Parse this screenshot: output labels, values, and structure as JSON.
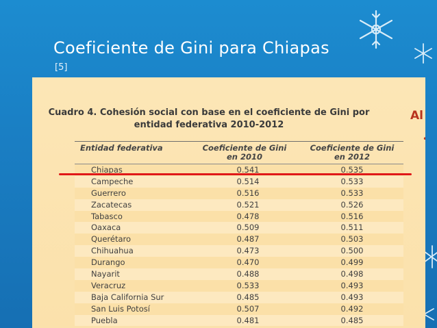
{
  "slide": {
    "title": "Coeficiente de Gini para Chiapas",
    "reference": "[5]"
  },
  "document": {
    "caption_line1": "Cuadro 4. Cohesión social con base en el coeficiente de Gini por",
    "caption_line2": "entidad federativa 2010-2012",
    "side_text": "Al",
    "columns": {
      "entity": "Entidad federativa",
      "gini2010_l1": "Coeficiente de Gini",
      "gini2010_l2": "en 2010",
      "gini2012_l1": "Coeficiente de Gini",
      "gini2012_l2": "en 2012"
    },
    "rows": [
      {
        "entity": "Chiapas",
        "g2010": "0.541",
        "g2012": "0.535"
      },
      {
        "entity": "Campeche",
        "g2010": "0.514",
        "g2012": "0.533"
      },
      {
        "entity": "Guerrero",
        "g2010": "0.516",
        "g2012": "0.533"
      },
      {
        "entity": "Zacatecas",
        "g2010": "0.521",
        "g2012": "0.526"
      },
      {
        "entity": "Tabasco",
        "g2010": "0.478",
        "g2012": "0.516"
      },
      {
        "entity": "Oaxaca",
        "g2010": "0.509",
        "g2012": "0.511"
      },
      {
        "entity": "Querétaro",
        "g2010": "0.487",
        "g2012": "0.503"
      },
      {
        "entity": "Chihuahua",
        "g2010": "0.473",
        "g2012": "0.500"
      },
      {
        "entity": "Durango",
        "g2010": "0.470",
        "g2012": "0.499"
      },
      {
        "entity": "Nayarit",
        "g2010": "0.488",
        "g2012": "0.498"
      },
      {
        "entity": "Veracruz",
        "g2010": "0.533",
        "g2012": "0.493"
      },
      {
        "entity": "Baja California Sur",
        "g2010": "0.485",
        "g2012": "0.493"
      },
      {
        "entity": "San Luis Potosí",
        "g2010": "0.507",
        "g2012": "0.492"
      },
      {
        "entity": "Puebla",
        "g2010": "0.481",
        "g2012": "0.485"
      }
    ]
  },
  "colors": {
    "background": "#1a7fc4",
    "highlight_line": "#e01818",
    "document_bg": "#fbe1ab"
  }
}
